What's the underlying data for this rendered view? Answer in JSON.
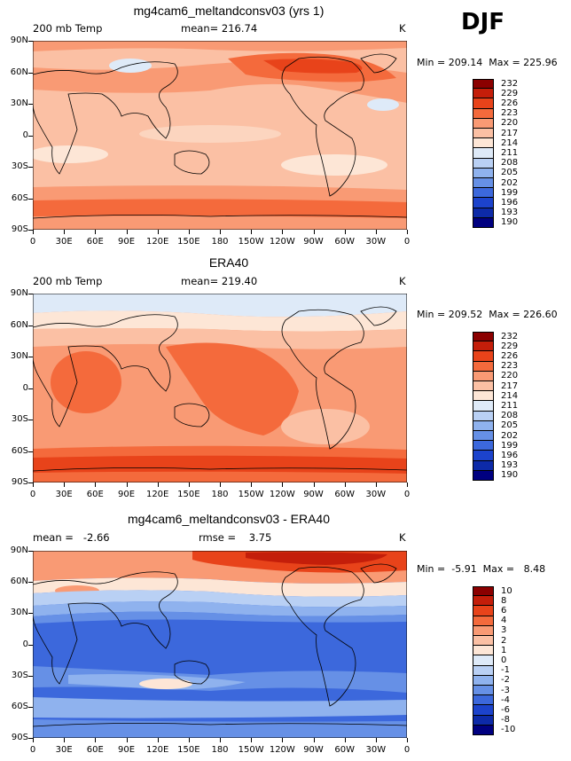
{
  "season": "DJF",
  "x_ticks": [
    "0",
    "30E",
    "60E",
    "90E",
    "120E",
    "150E",
    "180",
    "150W",
    "120W",
    "90W",
    "60W",
    "30W",
    "0"
  ],
  "y_ticks": [
    "90N",
    "60N",
    "30N",
    "0",
    "30S",
    "60S",
    "90S"
  ],
  "panels": [
    {
      "title": "mg4cam6_meltandconsv03 (yrs 1)",
      "left_label": "200 mb Temp",
      "mid_label": "mean= 216.74",
      "unit": "K",
      "minmax": "Min = 209.14  Max = 225.96",
      "levels": [
        "232",
        "229",
        "226",
        "223",
        "220",
        "217",
        "214",
        "211",
        "208",
        "205",
        "202",
        "199",
        "196",
        "193",
        "190"
      ]
    },
    {
      "title": "ERA40",
      "left_label": "200 mb Temp",
      "mid_label": "mean= 219.40",
      "unit": "K",
      "minmax": "Min = 209.52  Max = 226.60",
      "levels": [
        "232",
        "229",
        "226",
        "223",
        "220",
        "217",
        "214",
        "211",
        "208",
        "205",
        "202",
        "199",
        "196",
        "193",
        "190"
      ]
    },
    {
      "title": "mg4cam6_meltandconsv03 - ERA40",
      "left_label": "mean =   -2.66",
      "mid_label": "rmse =    3.75",
      "unit": "K",
      "minmax": "Min =  -5.91  Max =   8.48",
      "levels": [
        "10",
        "8",
        "6",
        "4",
        "3",
        "2",
        "1",
        "0",
        "-1",
        "-2",
        "-3",
        "-4",
        "-6",
        "-8",
        "-10"
      ]
    }
  ],
  "colors": {
    "bar": [
      "#8b0000",
      "#c41e0a",
      "#e8431a",
      "#f46a3c",
      "#f99a74",
      "#fbc0a4",
      "#fde6d6",
      "#deeaf8",
      "#b9d0f4",
      "#8fb2ee",
      "#6690e6",
      "#3c68dc",
      "#1c43cc",
      "#0d2aa8",
      "#000080"
    ],
    "map1": {
      "cool": "#deeaf8",
      "pale": "#fde6d6",
      "light": "#fbc0a4",
      "mid": "#f99a74",
      "strong": "#f46a3c",
      "deep": "#e8431a"
    },
    "map3": {
      "base": "#3c68dc",
      "band": "#6690e6",
      "lighter": "#8fb2ee",
      "pale": "#b9d0f4",
      "white": "#fde6d6",
      "warm": "#f99a74",
      "hot": "#e8431a",
      "deep": "#c41e0a"
    }
  },
  "chart_data": [
    {
      "type": "heatmap",
      "title": "mg4cam6_meltandconsv03 (yrs 1)",
      "variable": "200 mb Temp",
      "unit": "K",
      "mean": 216.74,
      "min": 209.14,
      "max": 225.96,
      "x_range": [
        "0",
        "360"
      ],
      "y_range": [
        "90S",
        "90N"
      ],
      "contour_levels": [
        190,
        193,
        196,
        199,
        202,
        205,
        208,
        211,
        214,
        217,
        220,
        223,
        226,
        229,
        232
      ]
    },
    {
      "type": "heatmap",
      "title": "ERA40",
      "variable": "200 mb Temp",
      "unit": "K",
      "mean": 219.4,
      "min": 209.52,
      "max": 226.6,
      "x_range": [
        "0",
        "360"
      ],
      "y_range": [
        "90S",
        "90N"
      ],
      "contour_levels": [
        190,
        193,
        196,
        199,
        202,
        205,
        208,
        211,
        214,
        217,
        220,
        223,
        226,
        229,
        232
      ]
    },
    {
      "type": "heatmap",
      "title": "mg4cam6_meltandconsv03 - ERA40",
      "unit": "K",
      "mean": -2.66,
      "rmse": 3.75,
      "min": -5.91,
      "max": 8.48,
      "x_range": [
        "0",
        "360"
      ],
      "y_range": [
        "90S",
        "90N"
      ],
      "contour_levels": [
        -10,
        -8,
        -6,
        -4,
        -3,
        -2,
        -1,
        0,
        1,
        2,
        3,
        4,
        6,
        8,
        10
      ]
    }
  ]
}
